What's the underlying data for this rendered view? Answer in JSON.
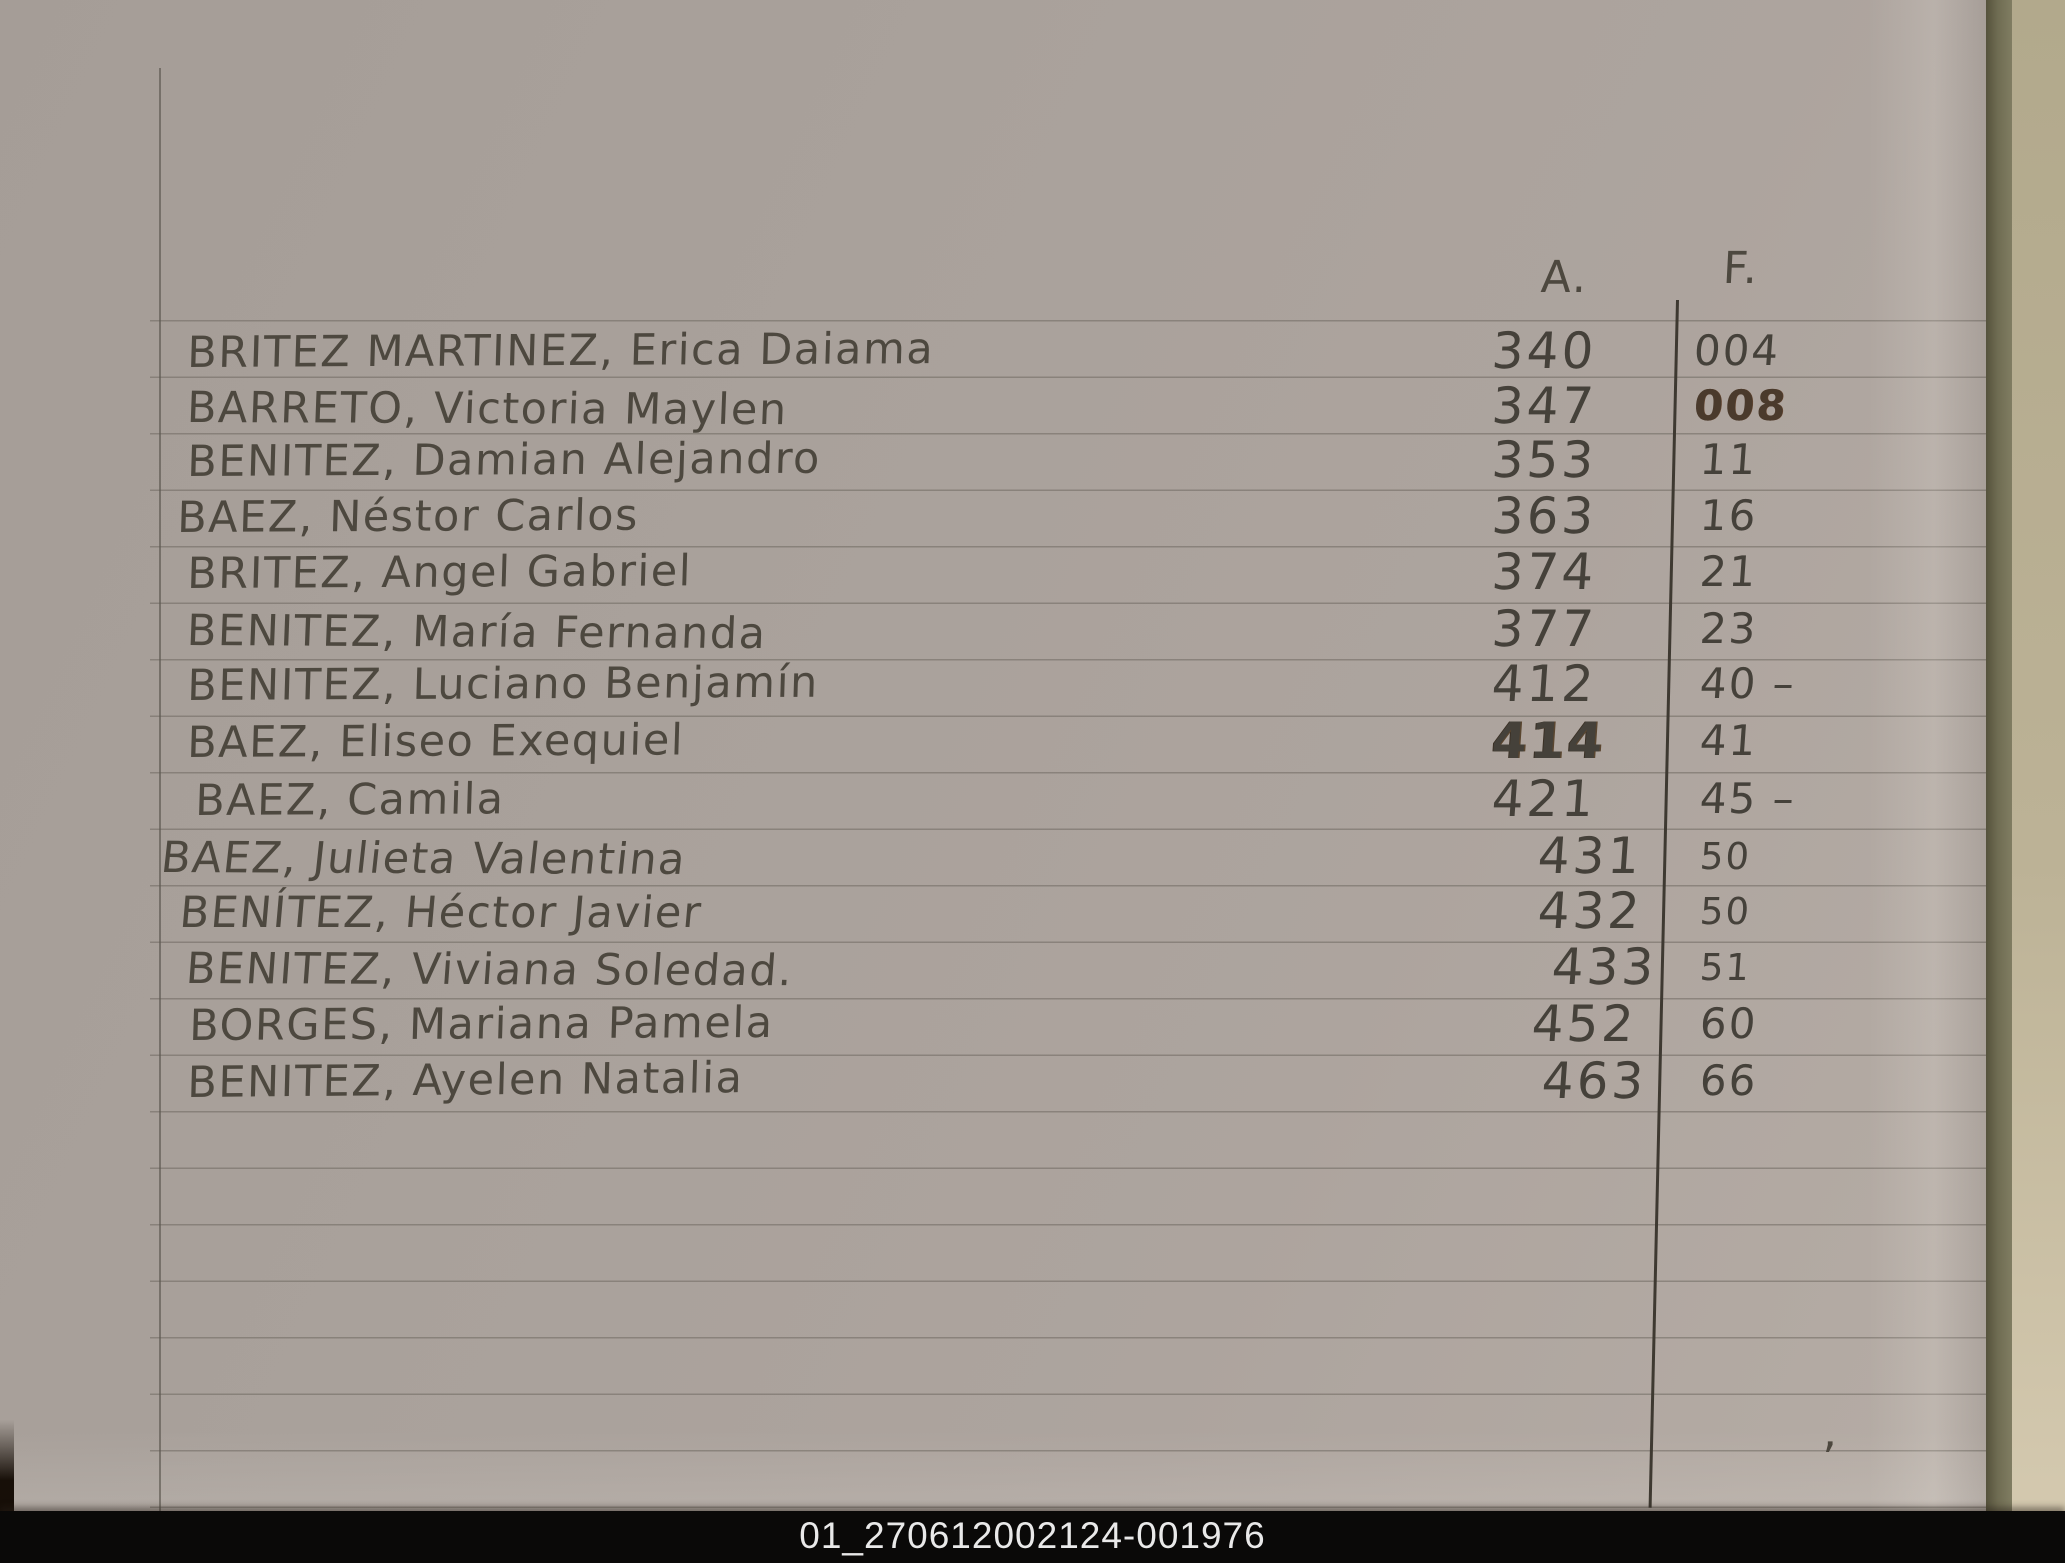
{
  "document": {
    "kind": "handwritten-index-page",
    "columns": {
      "a_header": "A.",
      "f_header": "F."
    },
    "rows": [
      {
        "name": "BRITEZ MARTINEZ, Erica Daiama",
        "a": "340",
        "f": "004"
      },
      {
        "name": "BARRETO, Victoria Maylen",
        "a": "347",
        "f": "008"
      },
      {
        "name": "BENITEZ, Damian Alejandro",
        "a": "353",
        "f": "11"
      },
      {
        "name": "BAEZ, Néstor Carlos",
        "a": "363",
        "f": "16"
      },
      {
        "name": "BRITEZ, Angel Gabriel",
        "a": "374",
        "f": "21"
      },
      {
        "name": "BENITEZ, María Fernanda",
        "a": "377",
        "f": "23"
      },
      {
        "name": "BENITEZ, Luciano Benjamín",
        "a": "412",
        "f": "40 –"
      },
      {
        "name": "BAEZ, Eliseo Exequiel",
        "a": "414",
        "f": "41"
      },
      {
        "name": "BAEZ, Camila",
        "a": "421",
        "f": "45 –"
      },
      {
        "name": "BAEZ, Julieta Valentina",
        "a": "431",
        "f": "50"
      },
      {
        "name": "BENÍTEZ, Héctor Javier",
        "a": "432",
        "f": "50"
      },
      {
        "name": "BENITEZ, Viviana Soledad.",
        "a": "433",
        "f": "51"
      },
      {
        "name": "BORGES, Mariana Pamela",
        "a": "452",
        "f": "60"
      },
      {
        "name": "BENITEZ, Ayelen Natalia",
        "a": "463",
        "f": "66"
      }
    ],
    "stray_mark": "’",
    "footer_label": "01_270612002124-001976"
  },
  "colors": {
    "paper": "#a9a19b",
    "ink": "#4d483f",
    "rule_line": "#68625a",
    "footer_bg": "#0a0908",
    "footer_text": "#e9e9e9",
    "page_edge": "#6f6c52"
  }
}
